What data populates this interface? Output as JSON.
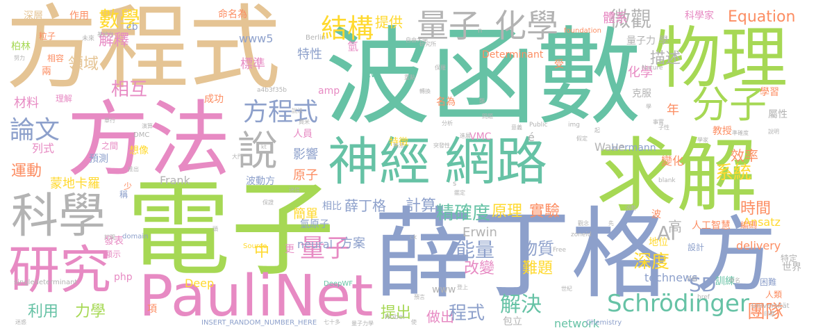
{
  "palette": {
    "teal": "#66c2a5",
    "orange": "#fc8d62",
    "blue": "#8da0cb",
    "pink": "#e78ac3",
    "green": "#a6d854",
    "yellow": "#ffd92f",
    "tan": "#e5c494",
    "gray": "#b3b3b3"
  },
  "words": {
    "w1": "波函數",
    "w2": "薛丁格",
    "w3": "方程式",
    "w4": "電子",
    "w5": "方法",
    "w6": "求解",
    "w7": "物理",
    "w8": "PauliNet",
    "w9": "神經",
    "w10": "網路",
    "w11": "研究",
    "w12": "科學",
    "w13": "分子",
    "w14": "方",
    "w15": "化學",
    "w16": "量子",
    "w17": "結構",
    "w18": "說",
    "w19": "方程式",
    "w20": "Schrödinger",
    "w21": "論文",
    "w22": "微觀",
    "w23": "數學",
    "w24": "Equation",
    "w25": "量子",
    "w26": "精確度",
    "w27": "系統",
    "w28": "深度",
    "w29": "能量",
    "w30": "解決",
    "w31": "物質",
    "w32": "蒙地卡羅",
    "w33": "運動",
    "w34": "薛丁格",
    "w35": "原理",
    "w36": "計算",
    "w37": "實驗",
    "w38": "相互",
    "w39": "描述",
    "w40": "提出",
    "w41": "做出",
    "w42": "程式",
    "w43": "團隊",
    "w44": "時間",
    "w45": "改變",
    "w46": "難題",
    "w47": "解釋",
    "w48": "領域",
    "w49": "利用",
    "w50": "力學",
    "w51": "AI",
    "w52": "SD",
    "w53": "Erwin",
    "w54": "Hermann",
    "w55": "Ansatz",
    "w56": "Wave",
    "w57": "Frank",
    "w58": "Deep",
    "w59": "neural",
    "w60": "network",
    "w61": "technews",
    "w62": "delivery",
    "w63": "VMC",
    "w64": "Determinant",
    "w65": "www5",
    "w66": "www",
    "w67": "amp",
    "w68": "tw",
    "w69": "php",
    "w70": "cb",
    "w71": "體系",
    "w72": "提供",
    "w73": "科學家",
    "w74": "命名為",
    "w75": "作用",
    "w76": "深層",
    "w77": "特性",
    "w78": "標準",
    "w79": "原子",
    "w80": "影響",
    "w81": "人員",
    "w82": "成功",
    "w83": "材料",
    "w84": "理解",
    "w85": "列式",
    "w86": "想像",
    "w87": "預測",
    "w88": "之間",
    "w89": "波動方",
    "w90": "簡單",
    "w91": "相比",
    "w92": "氫原子",
    "w93": "方案",
    "w94": "中",
    "w95": "更",
    "w96": "高",
    "w97": "人工智慧",
    "w98": "地位",
    "w99": "設計",
    "w100": "困難",
    "w101": "人類",
    "w102": "世界",
    "w103": "特定",
    "w104": "訓練",
    "w105": "編碼",
    "w106": "效率",
    "w107": "變化",
    "w108": "克服",
    "w109": "學習",
    "w110": "教授",
    "w111": "屬性",
    "w112": "年",
    "w113": "化學",
    "w114": "量子力 學",
    "w115": "氫",
    "w116": "發表",
    "w117": "顯示",
    "w118": "項",
    "w119": "包立",
    "w120": "兩",
    "w121": "相容",
    "w122": "粒子",
    "w123": "柏林",
    "w124": "少",
    "w125": "稱",
    "w126": "特徵",
    "w127": "名為",
    "w128": "波",
    "w129": "受",
    "w130": "singledeterminant",
    "w131": "INSERT_RANDOM_NUMBER_HERE",
    "w132": "DeepWF",
    "w133": "DMC",
    "w134": "Berlin",
    "w135": "foundation",
    "w136": "Nature",
    "w137": "Universität",
    "w138": "Chemistry",
    "w139": "Nobel",
    "w140": "Source",
    "w141": "domain",
    "w142": "zoneid",
    "w143": "Free",
    "w144": "href",
    "w145": "blank",
    "w146": "a4b3f35b",
    "w147": "ck",
    "w148": "img",
    "w149": "Public",
    "w150": "kt",
    "w151": "é",
    "w152": "s",
    "w153": "n",
    "w154": "未來",
    "w155": "自由大學",
    "w156": "量子力學",
    "w157": "七十多",
    "w158": "努力",
    "w159": "單行",
    "w160": "打開",
    "w161": "迷惑",
    "w162": "推出",
    "w163": "費米",
    "w164": "保證",
    "w165": "大門",
    "w166": "問題",
    "w167": "世紀",
    "w168": "登上",
    "w169": "預言",
    "w170": "介紹",
    "w171": "印度",
    "w172": "演算",
    "w173": "命名",
    "w174": "準確度",
    "w175": "說明",
    "w176": "學家",
    "w177": "事實",
    "w178": "先",
    "w179": "意義",
    "w180": "轉換",
    "w181": "突發性",
    "w182": "鑑定",
    "w183": "無法",
    "w184": "子性",
    "w185": "學",
    "w186": "活動",
    "w187": "觀念",
    "w188": "分析",
    "w189": "進展",
    "w190": "假定",
    "w191": "重點",
    "w192": "保羅",
    "w193": "類",
    "w194": "起",
    "w195": "說法",
    "w196": "迷信",
    "w197": "頭",
    "w198": "使",
    "w199": "研究所",
    "w200": "基地台"
  }
}
